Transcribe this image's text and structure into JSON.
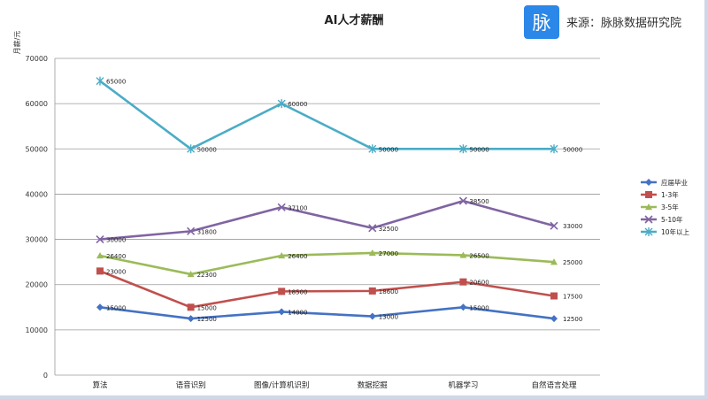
{
  "chart_data": {
    "type": "line",
    "title": "AI人才薪酬",
    "ylabel": "月薪/元",
    "xlabel": "",
    "ylim": [
      0,
      70000
    ],
    "ytick_step": 10000,
    "grid": true,
    "legend_position": "right",
    "categories": [
      "算法",
      "语音识别",
      "图像/计算机识别",
      "数据挖掘",
      "机器学习",
      "自然语言处理"
    ],
    "series": [
      {
        "name": "应届毕业",
        "color": "#4472c4",
        "marker": "diamond",
        "values": [
          15000,
          12500,
          14000,
          13000,
          15000,
          12500
        ]
      },
      {
        "name": "1-3年",
        "color": "#c0504d",
        "marker": "square",
        "values": [
          23000,
          15000,
          18500,
          18600,
          20600,
          17500
        ]
      },
      {
        "name": "3-5年",
        "color": "#9bbb59",
        "marker": "triangle",
        "values": [
          26400,
          22300,
          26400,
          27000,
          26500,
          25000
        ]
      },
      {
        "name": "5-10年",
        "color": "#8064a2",
        "marker": "x",
        "values": [
          30000,
          31800,
          37100,
          32500,
          38500,
          33000
        ]
      },
      {
        "name": "10年以上",
        "color": "#4bacc6",
        "marker": "star",
        "values": [
          65000,
          50000,
          60000,
          50000,
          50000,
          50000
        ]
      }
    ]
  },
  "watermark": {
    "logo_char": "脉",
    "text": "来源：脉脉数据研究院",
    "logo_color": "#2b87e8"
  }
}
